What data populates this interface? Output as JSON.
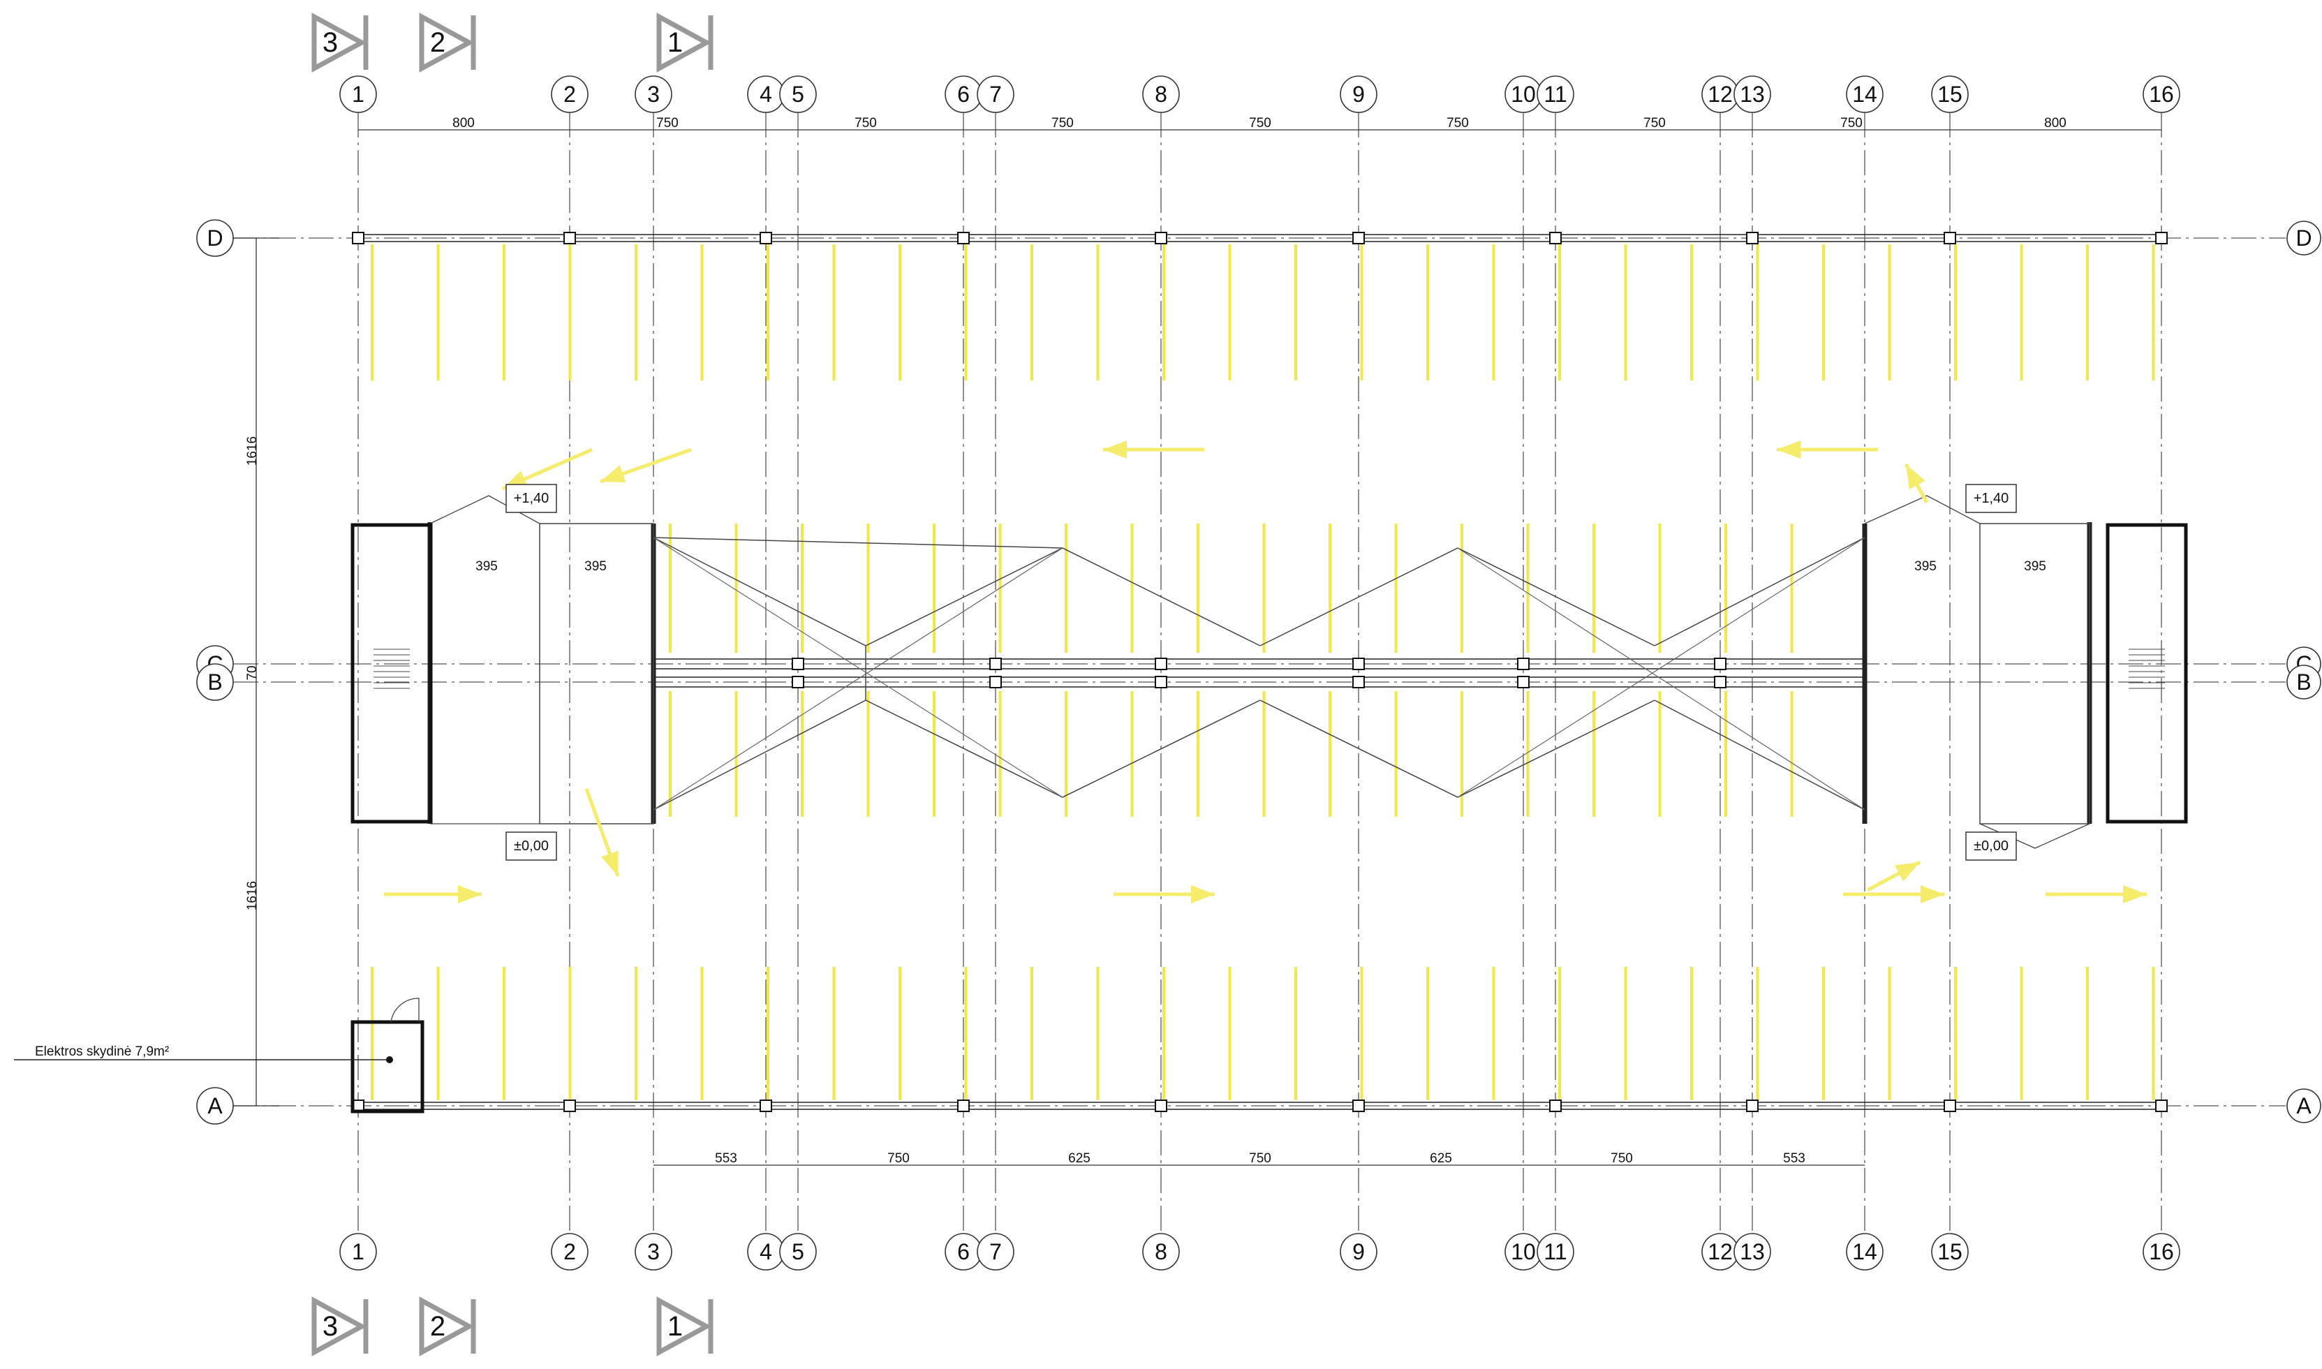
{
  "plan": {
    "column_axes": [
      "1",
      "2",
      "3",
      "4",
      "5",
      "6",
      "7",
      "8",
      "9",
      "10",
      "11",
      "12",
      "13",
      "14",
      "15",
      "16"
    ],
    "row_axes": [
      "D",
      "C",
      "B",
      "A"
    ],
    "top_dimensions": [
      "800",
      "750",
      "750",
      "750",
      "750",
      "750",
      "750",
      "750",
      "800"
    ],
    "bottom_dimensions": [
      "553",
      "750",
      "625",
      "750",
      "625",
      "750",
      "553"
    ],
    "vertical_dimensions": [
      "1616",
      "70",
      "1616"
    ],
    "ramp_dimensions": [
      "395",
      "395",
      "395",
      "395"
    ],
    "level_tags": [
      "+1,40",
      "+1,40",
      "±0,00",
      "±0,00"
    ],
    "section_markers_top": [
      "3",
      "2",
      "1"
    ],
    "section_markers_bottom": [
      "3",
      "2",
      "1"
    ],
    "room_note": "Elektros skydinė 7,9m²",
    "colors": {
      "line": "#222222",
      "axis": "#555555",
      "parking": "#f2e84a",
      "arrow": "#f4ec6a",
      "background": "#ffffff"
    }
  }
}
